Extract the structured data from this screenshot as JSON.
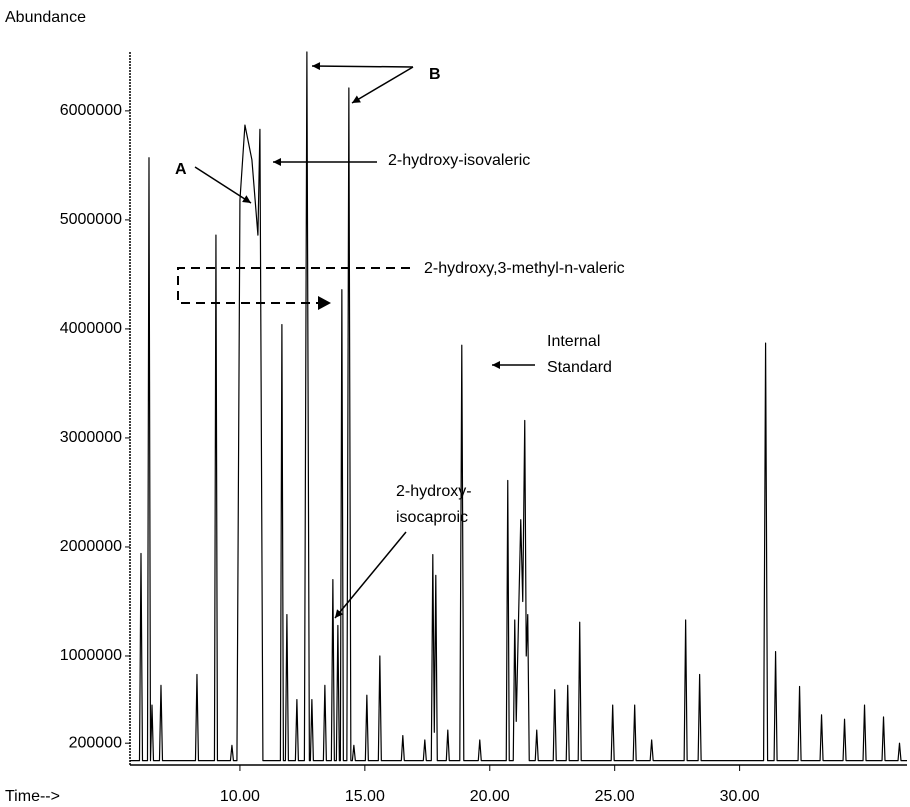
{
  "chart_data": {
    "type": "line",
    "y_label": "Abundance",
    "x_label": "Time-->",
    "xlim": [
      5.6,
      36.7
    ],
    "ylim": [
      0,
      6540000
    ],
    "xticks": [
      {
        "value": 10,
        "label": "10.00"
      },
      {
        "value": 15,
        "label": "15.00"
      },
      {
        "value": 20,
        "label": "20.00"
      },
      {
        "value": 25,
        "label": "25.00"
      },
      {
        "value": 30,
        "label": "30.00"
      }
    ],
    "yticks": [
      200000,
      1000000,
      2000000,
      3000000,
      4000000,
      5000000,
      6000000
    ],
    "color": "#000000",
    "x": [
      5.6,
      5.98,
      6.04,
      6.1,
      6.3,
      6.36,
      6.42,
      6.48,
      6.54,
      6.78,
      6.84,
      6.9,
      8.22,
      8.28,
      8.34,
      8.98,
      9.04,
      9.1,
      9.62,
      9.68,
      9.74,
      9.88,
      10.0,
      10.2,
      10.48,
      10.72,
      10.8,
      10.92,
      11.62,
      11.68,
      11.74,
      11.82,
      11.88,
      11.94,
      12.22,
      12.28,
      12.34,
      12.58,
      12.68,
      12.78,
      12.82,
      12.88,
      12.94,
      13.34,
      13.4,
      13.46,
      13.66,
      13.72,
      13.78,
      13.86,
      13.92,
      13.98,
      14.02,
      14.08,
      14.14,
      14.28,
      14.36,
      14.44,
      14.5,
      14.56,
      14.62,
      15.02,
      15.08,
      15.14,
      15.54,
      15.6,
      15.66,
      16.46,
      16.52,
      16.58,
      17.34,
      17.4,
      17.46,
      17.66,
      17.72,
      17.78,
      17.84,
      17.9,
      18.26,
      18.32,
      18.38,
      18.8,
      18.88,
      18.96,
      19.54,
      19.6,
      19.66,
      20.66,
      20.72,
      20.78,
      20.94,
      21.0,
      21.06,
      21.24,
      21.32,
      21.4,
      21.46,
      21.52,
      21.58,
      21.82,
      21.88,
      21.94,
      22.54,
      22.6,
      22.66,
      23.06,
      23.12,
      23.18,
      23.54,
      23.6,
      23.66,
      24.86,
      24.92,
      24.98,
      25.74,
      25.8,
      25.86,
      26.42,
      26.48,
      26.54,
      27.78,
      27.84,
      27.9,
      28.34,
      28.4,
      28.46,
      30.96,
      31.04,
      31.12,
      31.38,
      31.44,
      31.5,
      32.34,
      32.4,
      32.46,
      33.22,
      33.28,
      33.34,
      34.14,
      34.2,
      34.26,
      34.94,
      35.0,
      35.06,
      35.7,
      35.76,
      35.82,
      36.34,
      36.4,
      36.46,
      36.7
    ],
    "values": [
      40000,
      40000,
      1940000,
      40000,
      40000,
      5570000,
      40000,
      550000,
      40000,
      40000,
      730000,
      40000,
      40000,
      830000,
      40000,
      40000,
      4860000,
      40000,
      40000,
      180000,
      40000,
      40000,
      5180000,
      5870000,
      5550000,
      4860000,
      5830000,
      40000,
      40000,
      4040000,
      40000,
      40000,
      1380000,
      40000,
      40000,
      600000,
      40000,
      40000,
      6540000,
      40000,
      40000,
      600000,
      40000,
      40000,
      730000,
      40000,
      40000,
      1700000,
      40000,
      40000,
      1280000,
      40000,
      40000,
      4360000,
      40000,
      40000,
      6210000,
      40000,
      40000,
      180000,
      40000,
      40000,
      640000,
      40000,
      40000,
      1000000,
      40000,
      40000,
      270000,
      40000,
      40000,
      230000,
      40000,
      40000,
      1930000,
      300000,
      1740000,
      40000,
      40000,
      320000,
      40000,
      40000,
      3850000,
      40000,
      40000,
      230000,
      40000,
      40000,
      2610000,
      40000,
      40000,
      1330000,
      400000,
      2250000,
      1500000,
      3160000,
      1000000,
      1380000,
      40000,
      40000,
      320000,
      40000,
      40000,
      690000,
      40000,
      40000,
      730000,
      40000,
      40000,
      1310000,
      40000,
      40000,
      550000,
      40000,
      40000,
      550000,
      40000,
      40000,
      230000,
      40000,
      40000,
      1330000,
      40000,
      40000,
      830000,
      40000,
      40000,
      3870000,
      40000,
      40000,
      1040000,
      40000,
      40000,
      720000,
      40000,
      40000,
      460000,
      40000,
      40000,
      420000,
      40000,
      40000,
      550000,
      40000,
      40000,
      440000,
      40000,
      40000,
      200000,
      40000,
      40000
    ],
    "annotations": {
      "a": "A",
      "b": "B",
      "isovaleric": "2-hydroxy-isovaleric",
      "methylvaleric": "2-hydroxy,3-methyl-n-valeric",
      "internal_standard": [
        "Internal",
        "Standard"
      ],
      "isocaproic": [
        "2-hydroxy-",
        "isocaproic"
      ]
    }
  }
}
